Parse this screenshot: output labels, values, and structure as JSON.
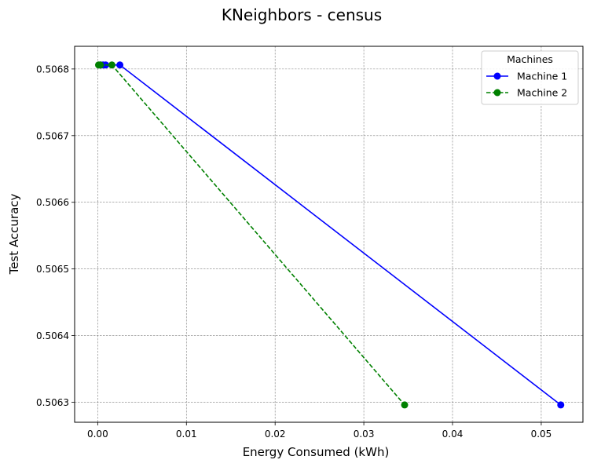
{
  "chart_data": {
    "type": "line",
    "title": "KNeighbors - census",
    "xlabel": "Energy Consumed (kWh)",
    "ylabel": "Test Accuracy",
    "xlim": [
      -0.0026,
      0.0547
    ],
    "ylim": [
      0.50627,
      0.506834
    ],
    "x_ticks": [
      0.0,
      0.01,
      0.02,
      0.03,
      0.04,
      0.05
    ],
    "x_tick_labels": [
      "0.00",
      "0.01",
      "0.02",
      "0.03",
      "0.04",
      "0.05"
    ],
    "y_ticks": [
      0.5063,
      0.5064,
      0.5065,
      0.5066,
      0.5067,
      0.5068
    ],
    "y_tick_labels": [
      "0.5063",
      "0.5064",
      "0.5065",
      "0.5066",
      "0.5067",
      "0.5068"
    ],
    "grid": true,
    "legend": {
      "title": "Machines",
      "placement": "top-right"
    },
    "series": [
      {
        "name": "Machine 1",
        "color": "#0000ff",
        "line_style": "solid",
        "marker": "circle",
        "x": [
          0.0003,
          0.0006,
          0.0009,
          0.0025,
          0.0522
        ],
        "y": [
          0.506806,
          0.506806,
          0.506806,
          0.506806,
          0.506296
        ]
      },
      {
        "name": "Machine 2",
        "color": "#008000",
        "line_style": "dashed",
        "marker": "circle",
        "x": [
          0.0001,
          0.0003,
          0.0016,
          0.0346
        ],
        "y": [
          0.506806,
          0.506806,
          0.506806,
          0.506296
        ]
      }
    ]
  }
}
